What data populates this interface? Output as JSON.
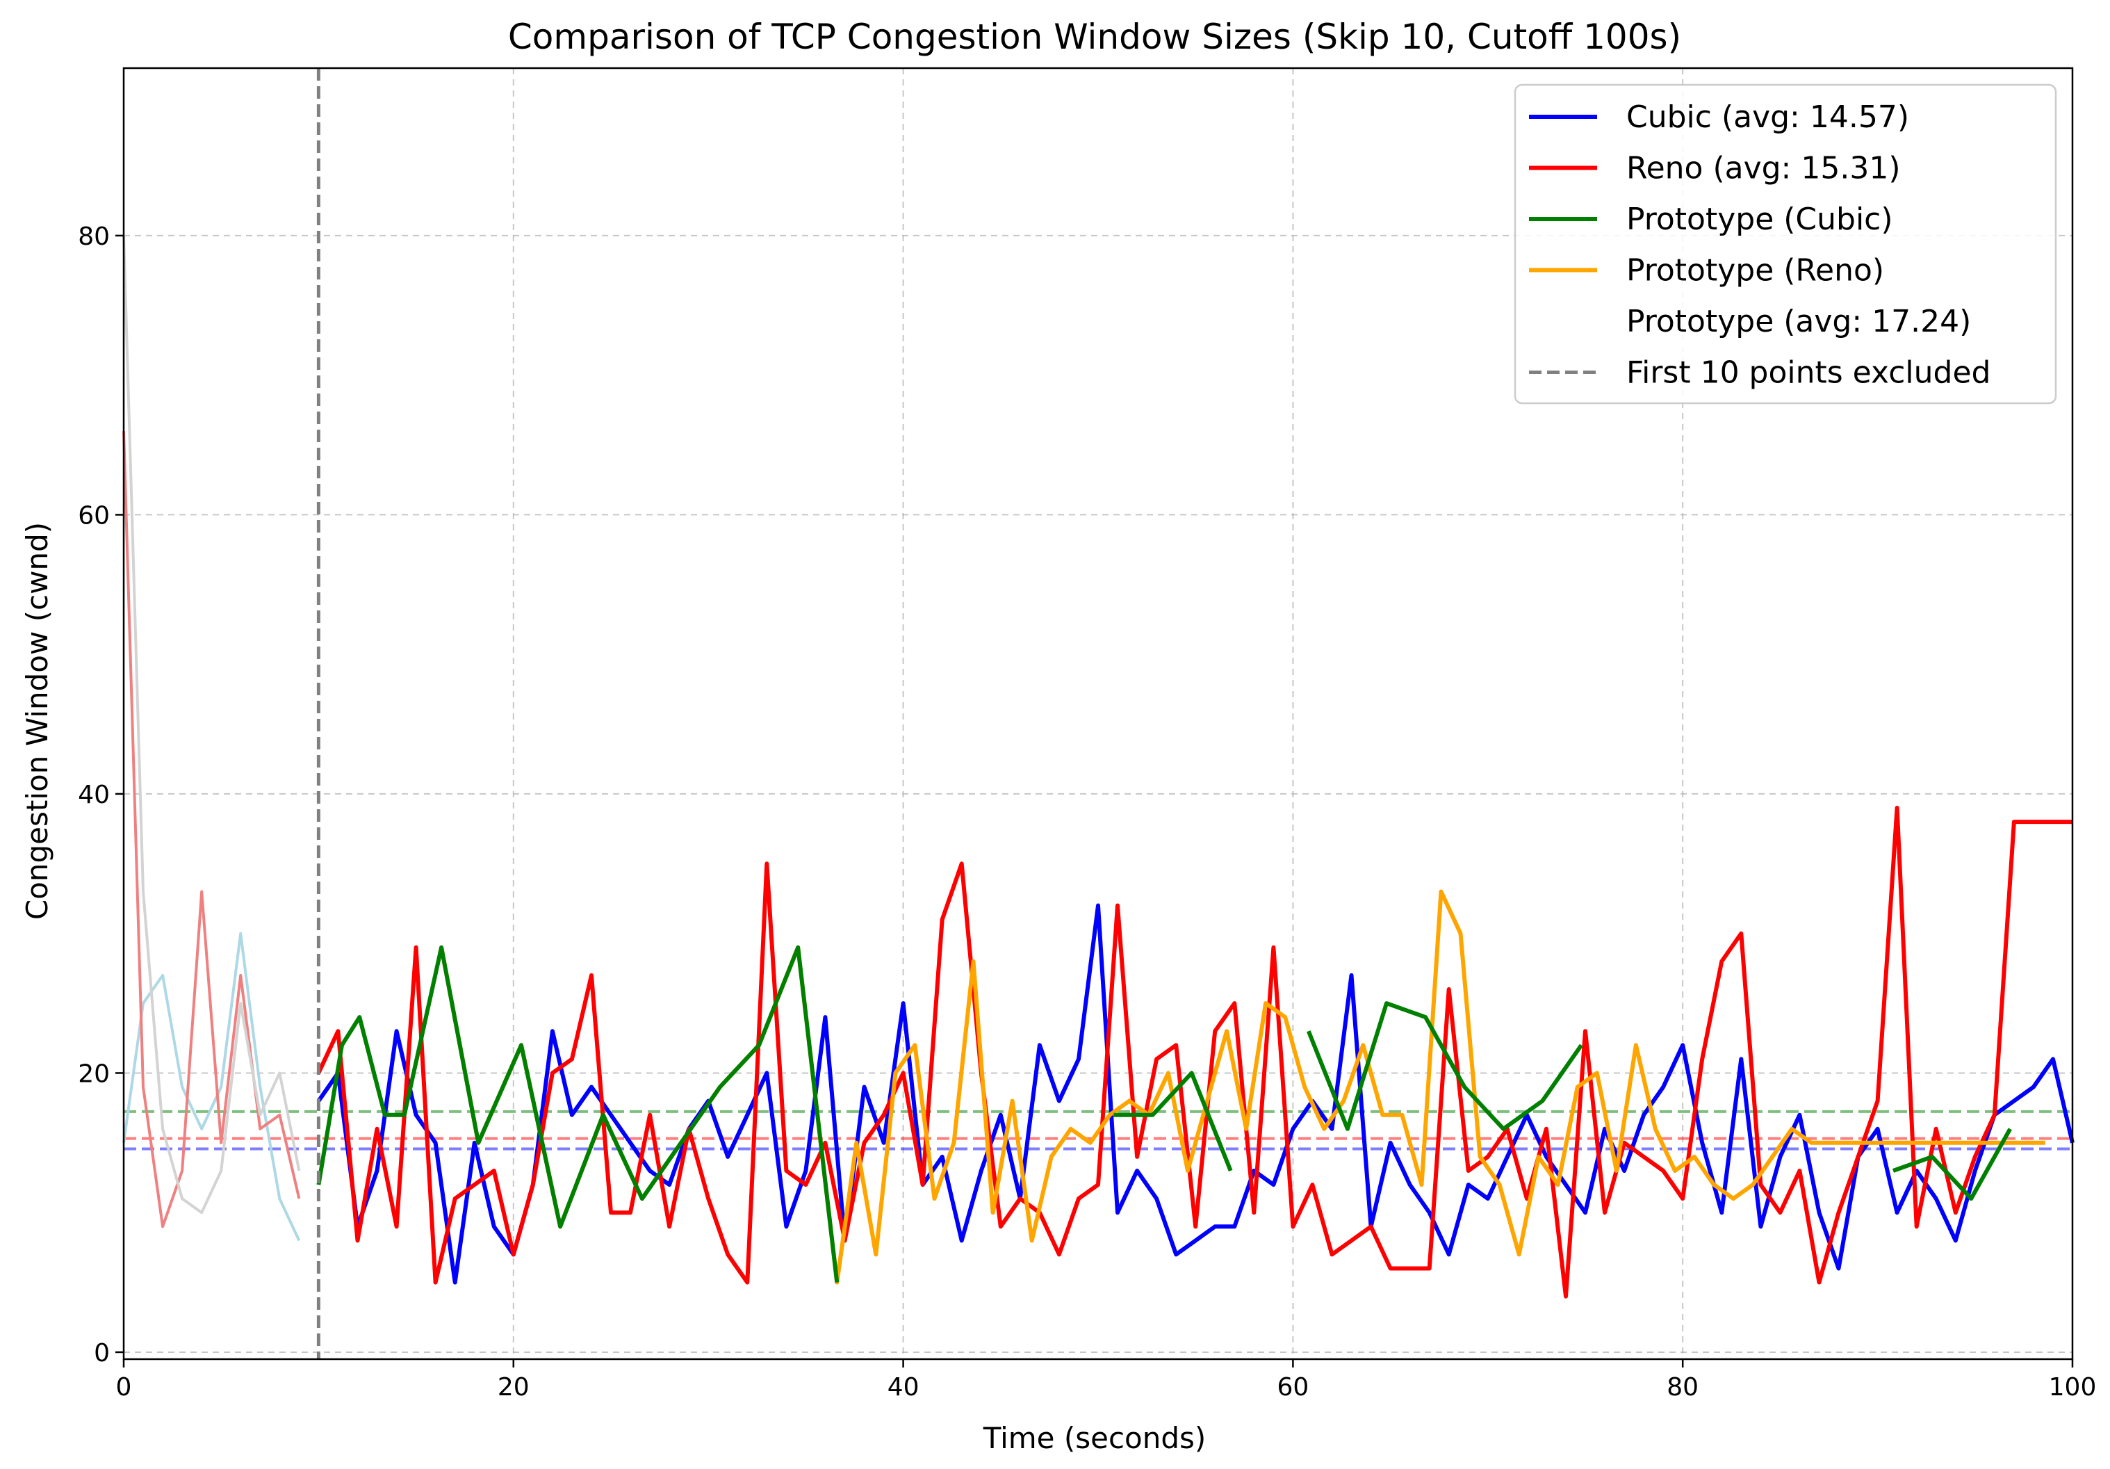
{
  "chart_data": {
    "type": "line",
    "title": "Comparison of TCP Congestion Window Sizes (Skip 10, Cutoff 100s)",
    "xlabel": "Time (seconds)",
    "ylabel": "Congestion Window (cwnd)",
    "xlim": [
      0,
      100
    ],
    "ylim": [
      -0.5,
      92
    ],
    "x_ticks": [
      0,
      20,
      40,
      60,
      80,
      100
    ],
    "y_ticks": [
      0,
      20,
      40,
      60,
      80
    ],
    "grid": true,
    "legend_position": "top-right",
    "legend": [
      {
        "label": "Cubic (avg: 14.57)",
        "color": "#0000ff",
        "style": "solid"
      },
      {
        "label": "Reno (avg: 15.31)",
        "color": "#ff0000",
        "style": "solid"
      },
      {
        "label": "Prototype (Cubic)",
        "color": "#008000",
        "style": "solid"
      },
      {
        "label": "Prototype (Reno)",
        "color": "#ffa500",
        "style": "solid"
      },
      {
        "label": "Prototype (avg: 17.24)",
        "color": "none",
        "style": "none"
      },
      {
        "label": "First 10 points excluded",
        "color": "#808080",
        "style": "dashed"
      }
    ],
    "vline": {
      "x": 10,
      "color": "#808080"
    },
    "averages": [
      {
        "series": "Cubic",
        "value": 14.57,
        "color": "#0000ff"
      },
      {
        "series": "Reno",
        "value": 15.31,
        "color": "#ff0000"
      },
      {
        "series": "Prototype",
        "value": 17.24,
        "color": "#008000"
      }
    ],
    "excluded_series": [
      {
        "name": "Cubic (excluded)",
        "color": "#add8e6",
        "x": [
          0,
          1,
          2,
          3,
          4,
          5,
          6,
          7,
          8,
          9
        ],
        "y": [
          15,
          25,
          27,
          19,
          16,
          19,
          30,
          19,
          11,
          8
        ]
      },
      {
        "name": "Reno (excluded)",
        "color": "#f08080",
        "x": [
          0,
          1,
          2,
          3,
          4,
          5,
          6,
          7,
          8,
          9
        ],
        "y": [
          66,
          19,
          9,
          13,
          33,
          15,
          27,
          16,
          17,
          11
        ]
      },
      {
        "name": "Prototype (excluded)",
        "color": "#d3d3d3",
        "x": [
          0,
          1,
          2,
          3,
          4,
          5,
          6,
          7,
          8,
          9
        ],
        "y": [
          80,
          33,
          16,
          11,
          10,
          13,
          25,
          17,
          20,
          13
        ]
      }
    ],
    "series": [
      {
        "name": "Cubic",
        "color": "#0000ff",
        "x": [
          10,
          11,
          12,
          13,
          14,
          15,
          16,
          17,
          18,
          19,
          20,
          21,
          22,
          23,
          24,
          25,
          26,
          27,
          28,
          29,
          30,
          31,
          32,
          33,
          34,
          35,
          36,
          37,
          38,
          39,
          40,
          41,
          42,
          43,
          44,
          45,
          46,
          47,
          48,
          49,
          50,
          51,
          52,
          53,
          54,
          55,
          56,
          57,
          58,
          59,
          60,
          61,
          62,
          63,
          64,
          65,
          66,
          67,
          68,
          69,
          70,
          71,
          72,
          73,
          74,
          75,
          76,
          77,
          78,
          79,
          80,
          81,
          82,
          83,
          84,
          85,
          86,
          87,
          88,
          89,
          90,
          91,
          92,
          93,
          94,
          95,
          96,
          97,
          98,
          99,
          100
        ],
        "y": [
          18,
          20,
          9,
          13,
          23,
          17,
          15,
          5,
          15,
          9,
          7,
          12,
          23,
          17,
          19,
          17,
          15,
          13,
          12,
          16,
          18,
          14,
          17,
          20,
          9,
          13,
          24,
          8,
          19,
          15,
          25,
          12,
          14,
          8,
          13,
          17,
          11,
          22,
          18,
          21,
          32,
          10,
          13,
          11,
          7,
          8,
          9,
          9,
          13,
          12,
          16,
          18,
          16,
          27,
          9,
          15,
          12,
          10,
          7,
          12,
          11,
          14,
          17,
          14,
          12,
          10,
          16,
          13,
          17,
          19,
          22,
          15,
          10,
          21,
          9,
          14,
          17,
          10,
          6,
          14,
          16,
          10,
          13,
          11,
          8,
          13,
          17,
          18,
          19,
          21,
          15
        ]
      },
      {
        "name": "Reno",
        "color": "#ff0000",
        "x": [
          10,
          11,
          12,
          13,
          14,
          15,
          16,
          17,
          18,
          19,
          20,
          21,
          22,
          23,
          24,
          25,
          26,
          27,
          28,
          29,
          30,
          31,
          32,
          33,
          34,
          35,
          36,
          37,
          38,
          39,
          40,
          41,
          42,
          43,
          44,
          45,
          46,
          47,
          48,
          49,
          50,
          51,
          52,
          53,
          54,
          55,
          56,
          57,
          58,
          59,
          60,
          61,
          62,
          63,
          64,
          65,
          66,
          67,
          68,
          69,
          70,
          71,
          72,
          73,
          74,
          75,
          76,
          77,
          78,
          79,
          80,
          81,
          82,
          83,
          84,
          85,
          86,
          87,
          88,
          89,
          90,
          91,
          92,
          93,
          94,
          95,
          96,
          97,
          98,
          99,
          100
        ],
        "y": [
          20,
          23,
          8,
          16,
          9,
          29,
          5,
          11,
          12,
          13,
          7,
          12,
          20,
          21,
          27,
          10,
          10,
          17,
          9,
          16,
          11,
          7,
          5,
          35,
          13,
          12,
          15,
          8,
          15,
          17,
          20,
          12,
          31,
          35,
          20,
          9,
          11,
          10,
          7,
          11,
          12,
          32,
          14,
          21,
          22,
          9,
          23,
          25,
          10,
          29,
          9,
          12,
          7,
          8,
          9,
          6,
          6,
          6,
          26,
          13,
          14,
          16,
          11,
          16,
          4,
          23,
          10,
          15,
          14,
          13,
          11,
          21,
          28,
          30,
          12,
          10,
          13,
          5,
          10,
          14,
          18,
          39,
          9,
          16,
          10,
          14,
          17,
          38,
          38,
          38,
          38
        ]
      },
      {
        "name": "Prototype (Cubic)",
        "color": "#008000",
        "x": [
          10,
          11.2,
          12.1,
          13.4,
          14.4,
          16.3,
          18.2,
          20.4,
          22.4,
          24.6,
          26.6,
          28.6,
          30.6,
          32.6,
          34.6,
          36.6,
          38.8,
          40.8,
          42.8,
          44.8,
          46.8,
          48.8,
          50.8,
          52.8,
          54.8,
          56.8,
          58.8,
          60.8,
          62.8,
          64.8,
          66.8,
          68.8,
          70.8,
          72.8,
          74.8,
          76.8,
          78.8,
          80.8,
          82.8,
          84.8,
          86.8,
          88.8,
          90.8,
          92.8,
          94.8,
          96.8
        ],
        "y": [
          12,
          22,
          24,
          17,
          17,
          29,
          15,
          22,
          9,
          17,
          11,
          15,
          19,
          22,
          29,
          5,
          null,
          null,
          null,
          null,
          null,
          null,
          17,
          17,
          20,
          13,
          null,
          23,
          16,
          25,
          24,
          19,
          16,
          18,
          22,
          null,
          null,
          null,
          null,
          null,
          null,
          null,
          13,
          14,
          11,
          16
        ]
      },
      {
        "name": "Prototype (Reno)",
        "color": "#ffa500",
        "x": [
          16.3,
          18.2,
          20.4,
          22.4,
          24.6,
          26.6,
          28.6,
          30.6,
          32.6,
          34.6,
          36.6,
          37.6,
          38.6,
          39.6,
          40.6,
          41.6,
          42.6,
          43.6,
          44.6,
          45.6,
          46.6,
          47.6,
          48.6,
          49.6,
          50.6,
          51.6,
          52.6,
          53.6,
          54.6,
          55.6,
          56.6,
          57.6,
          58.6,
          59.6,
          60.6,
          61.6,
          62.6,
          63.6,
          64.6,
          65.6,
          66.6,
          67.6,
          68.6,
          69.6,
          70.6,
          71.6,
          72.6,
          73.6,
          74.6,
          75.6,
          76.6,
          77.6,
          78.6,
          79.6,
          80.6,
          81.6,
          82.6,
          83.6,
          84.6,
          85.6,
          86.6,
          87.6,
          88.6,
          89.6,
          90.6,
          91.6,
          92.6,
          93.6,
          94.6,
          95.6,
          96.6,
          97.6,
          98.6
        ],
        "y": [
          29,
          15,
          22,
          9,
          17,
          11,
          15,
          19,
          22,
          29,
          5,
          15,
          7,
          20,
          22,
          11,
          15,
          28,
          10,
          18,
          8,
          14,
          16,
          15,
          17,
          18,
          17,
          20,
          13,
          18,
          23,
          16,
          25,
          24,
          19,
          16,
          18,
          22,
          17,
          17,
          12,
          33,
          30,
          14,
          12,
          7,
          14,
          12,
          19,
          20,
          13,
          22,
          16,
          13,
          14,
          12,
          11,
          12,
          14,
          16,
          15,
          15,
          15,
          15,
          15,
          15,
          15,
          15,
          15,
          15,
          15,
          15,
          15
        ]
      }
    ]
  }
}
